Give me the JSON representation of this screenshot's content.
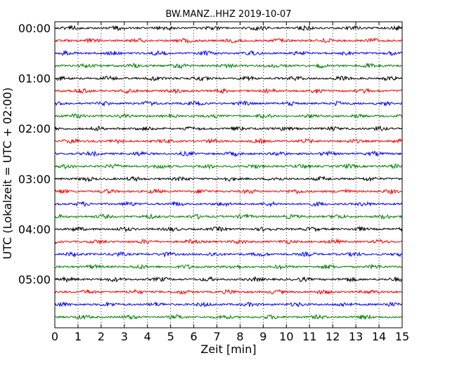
{
  "chart_data": {
    "type": "line",
    "title": "BW.MANZ..HHZ 2019-10-07",
    "xlabel": "Zeit  [min]",
    "ylabel": "UTC (Lokalzeit = UTC + 02:00)",
    "xlim": [
      0,
      15
    ],
    "x_ticks": [
      "0",
      "1",
      "2",
      "3",
      "4",
      "5",
      "6",
      "7",
      "8",
      "9",
      "10",
      "11",
      "12",
      "13",
      "14",
      "15"
    ],
    "y_ticks": [
      "00:00",
      "01:00",
      "02:00",
      "03:00",
      "04:00",
      "05:00"
    ],
    "trace_interval_min": 15,
    "trace_count": 24,
    "trace_colors": [
      "#000000",
      "#ff0000",
      "#0000ff",
      "#008000"
    ],
    "x_grid": "dotted",
    "y_grid": false,
    "legend": "none"
  }
}
